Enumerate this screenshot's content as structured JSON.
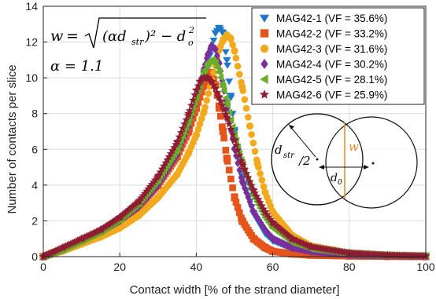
{
  "chart_data": {
    "type": "scatter",
    "title": "",
    "xlabel": "Contact width [% of the strand diameter]",
    "ylabel": "Number of contacts per slice",
    "xlim": [
      0,
      100
    ],
    "ylim": [
      0,
      14
    ],
    "x_ticks": [
      "0",
      "20",
      "40",
      "60",
      "80",
      "100"
    ],
    "y_ticks": [
      "0",
      "2",
      "4",
      "6",
      "8",
      "10",
      "12",
      "14"
    ],
    "legend_position": "top-right",
    "annotations": {
      "formula_w": "w",
      "formula_eq": "=",
      "formula_radicand": "(αd",
      "formula_str": "str",
      "formula_tail": ")² − d",
      "formula_o": "o",
      "formula_sq": "2",
      "alpha_text": "α = 1.1",
      "diag_dstr": "d",
      "diag_str": "str",
      "diag_slash": "/2",
      "diag_d0": "d",
      "diag_0": "0",
      "diag_w": "w"
    },
    "series": [
      {
        "name": "MAG42-1 (VF = 35.6%)",
        "color": "#1f77c9",
        "marker": "triangle-down",
        "x": [
          0,
          5,
          10,
          15,
          20,
          25,
          30,
          35,
          38,
          40,
          42,
          44,
          45,
          46,
          47,
          48,
          49,
          50,
          52,
          55,
          58,
          60,
          65,
          70,
          80,
          90,
          100
        ],
        "y": [
          0,
          0.4,
          0.9,
          1.4,
          2.0,
          2.8,
          4.0,
          5.6,
          7.0,
          8.3,
          9.8,
          11.6,
          12.5,
          12.8,
          12.5,
          11.0,
          9.0,
          7.0,
          4.5,
          2.4,
          1.3,
          0.9,
          0.45,
          0.25,
          0.1,
          0.05,
          0.02
        ]
      },
      {
        "name": "MAG42-2 (VF = 33.2%)",
        "color": "#e5541b",
        "marker": "square",
        "x": [
          0,
          5,
          10,
          15,
          20,
          25,
          30,
          35,
          38,
          40,
          42,
          43,
          44,
          45,
          46,
          47,
          48,
          50,
          52,
          55,
          58,
          60,
          65,
          70,
          80,
          90,
          100
        ],
        "y": [
          0,
          0.4,
          0.9,
          1.4,
          2.0,
          2.8,
          4.0,
          5.6,
          7.0,
          8.3,
          9.6,
          10.3,
          10.3,
          9.6,
          8.3,
          7.0,
          5.5,
          3.3,
          2.0,
          1.0,
          0.5,
          0.3,
          0.15,
          0.08,
          0.03,
          0.01,
          0
        ]
      },
      {
        "name": "MAG42-3 (VF = 31.6%)",
        "color": "#f2a91c",
        "marker": "circle",
        "x": [
          0,
          5,
          10,
          15,
          20,
          25,
          30,
          35,
          38,
          40,
          42,
          44,
          46,
          47,
          48,
          49,
          50,
          52,
          54,
          56,
          58,
          60,
          65,
          70,
          80,
          90,
          100
        ],
        "y": [
          0,
          0.3,
          0.7,
          1.1,
          1.6,
          2.3,
          3.3,
          4.6,
          5.8,
          6.8,
          8.1,
          9.8,
          11.6,
          12.1,
          12.4,
          12.2,
          11.5,
          9.5,
          7.3,
          5.2,
          3.6,
          2.5,
          1.2,
          0.6,
          0.2,
          0.08,
          0.04
        ]
      },
      {
        "name": "MAG42-4 (VF = 30.2%)",
        "color": "#7a2e9c",
        "marker": "diamond",
        "x": [
          0,
          5,
          10,
          15,
          20,
          25,
          30,
          35,
          38,
          40,
          42,
          43,
          44,
          45,
          46,
          47,
          48,
          50,
          52,
          55,
          58,
          60,
          65,
          70,
          80,
          90,
          100
        ],
        "y": [
          0,
          0.4,
          0.9,
          1.4,
          2.0,
          2.8,
          4.0,
          5.7,
          7.3,
          8.8,
          10.5,
          11.3,
          11.8,
          11.6,
          10.8,
          9.6,
          8.3,
          6.0,
          4.2,
          2.5,
          1.5,
          1.0,
          0.5,
          0.3,
          0.12,
          0.05,
          0.02
        ]
      },
      {
        "name": "MAG42-5 (VF = 28.1%)",
        "color": "#6aad2a",
        "marker": "triangle-left",
        "x": [
          0,
          5,
          10,
          15,
          20,
          25,
          30,
          35,
          38,
          40,
          42,
          43,
          44,
          45,
          46,
          47,
          48,
          50,
          52,
          55,
          58,
          60,
          65,
          70,
          80,
          90,
          100
        ],
        "y": [
          0,
          0.4,
          0.9,
          1.4,
          2.1,
          3.0,
          4.3,
          6.0,
          7.6,
          8.9,
          10.3,
          10.8,
          11.0,
          10.8,
          10.3,
          9.5,
          8.6,
          6.8,
          5.2,
          3.4,
          2.2,
          1.6,
          0.8,
          0.45,
          0.18,
          0.07,
          0.03
        ]
      },
      {
        "name": "MAG42-6 (VF = 25.9%)",
        "color": "#8f1c33",
        "marker": "star",
        "x": [
          0,
          5,
          10,
          15,
          20,
          25,
          30,
          35,
          38,
          40,
          41,
          42,
          43,
          44,
          45,
          46,
          48,
          50,
          52,
          55,
          58,
          60,
          65,
          70,
          80,
          90,
          100
        ],
        "y": [
          0,
          0.5,
          1.0,
          1.5,
          2.2,
          3.1,
          4.5,
          6.4,
          8.0,
          9.3,
          9.8,
          10.0,
          10.0,
          9.8,
          9.4,
          8.9,
          7.8,
          6.5,
          5.2,
          3.7,
          2.5,
          1.9,
          1.0,
          0.55,
          0.2,
          0.08,
          0.03
        ]
      }
    ]
  }
}
